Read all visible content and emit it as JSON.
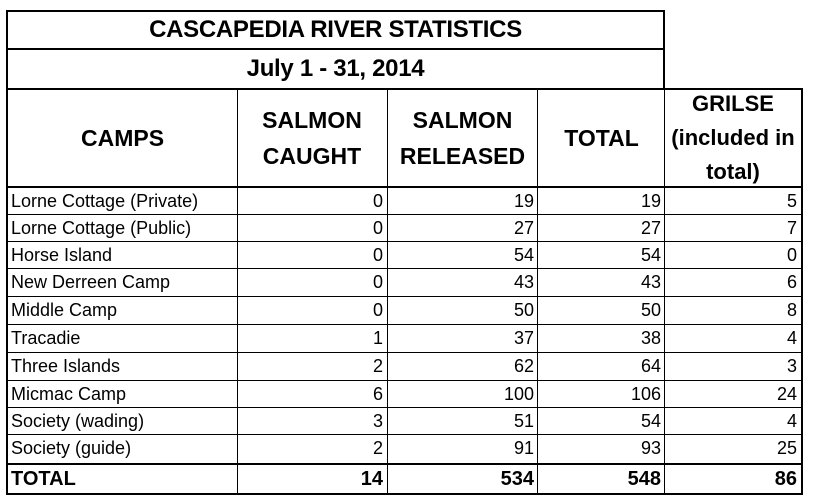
{
  "title": "CASCAPEDIA RIVER STATISTICS",
  "subtitle": "July 1 - 31, 2014",
  "headers": {
    "camps": "CAMPS",
    "salmon_caught": "SALMON CAUGHT",
    "salmon_released": "SALMON RELEASED",
    "total": "TOTAL",
    "grilse": "GRILSE (included in total)"
  },
  "rows": [
    {
      "camp": "Lorne Cottage (Private)",
      "caught": "0",
      "released": "19",
      "total": "19",
      "grilse": "5"
    },
    {
      "camp": "Lorne Cottage (Public)",
      "caught": "0",
      "released": "27",
      "total": "27",
      "grilse": "7"
    },
    {
      "camp": "Horse Island",
      "caught": "0",
      "released": "54",
      "total": "54",
      "grilse": "0"
    },
    {
      "camp": "New Derreen Camp",
      "caught": "0",
      "released": "43",
      "total": "43",
      "grilse": "6"
    },
    {
      "camp": "Middle Camp",
      "caught": "0",
      "released": "50",
      "total": "50",
      "grilse": "8"
    },
    {
      "camp": "Tracadie",
      "caught": "1",
      "released": "37",
      "total": "38",
      "grilse": "4"
    },
    {
      "camp": "Three Islands",
      "caught": "2",
      "released": "62",
      "total": "64",
      "grilse": "3"
    },
    {
      "camp": "Micmac Camp",
      "caught": "6",
      "released": "100",
      "total": "106",
      "grilse": "24"
    },
    {
      "camp": "Society (wading)",
      "caught": "3",
      "released": "51",
      "total": "54",
      "grilse": "4"
    },
    {
      "camp": "Society (guide)",
      "caught": "2",
      "released": "91",
      "total": "93",
      "grilse": "25"
    }
  ],
  "totals": {
    "label": "TOTAL",
    "caught": "14",
    "released": "534",
    "total": "548",
    "grilse": "86"
  }
}
